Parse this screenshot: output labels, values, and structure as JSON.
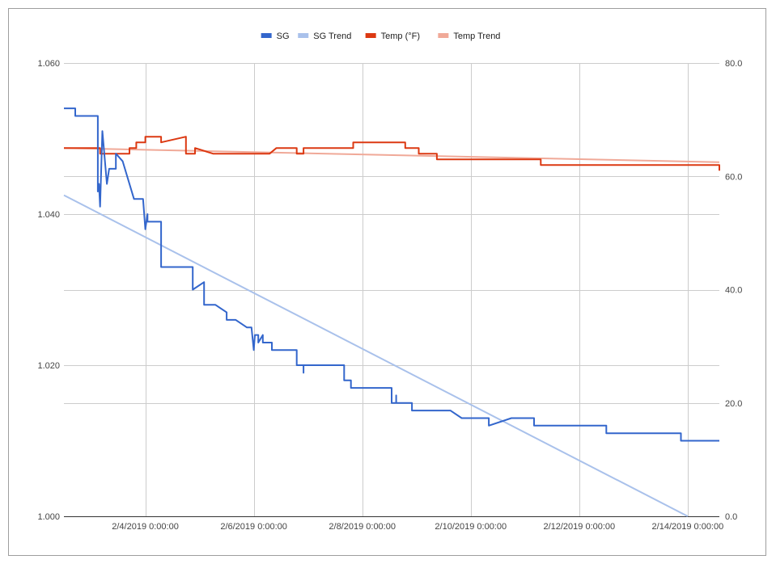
{
  "chart_data": {
    "type": "line",
    "title": "",
    "legend_position": "top",
    "grid": true,
    "x_axis": {
      "type": "date",
      "range": [
        "2019-02-02T12:00",
        "2019-02-14T14:00"
      ],
      "ticks": [
        {
          "value": "2019-02-04T00:00",
          "label": "2/4/2019 0:00:00"
        },
        {
          "value": "2019-02-06T00:00",
          "label": "2/6/2019 0:00:00"
        },
        {
          "value": "2019-02-08T00:00",
          "label": "2/8/2019 0:00:00"
        },
        {
          "value": "2019-02-10T00:00",
          "label": "2/10/2019 0:00:00"
        },
        {
          "value": "2019-02-12T00:00",
          "label": "2/12/2019 0:00:00"
        },
        {
          "value": "2019-02-14T00:00",
          "label": "2/14/2019 0:00:00"
        }
      ]
    },
    "y_left": {
      "range": [
        1.0,
        1.06
      ],
      "ticks": [
        {
          "value": 1.06,
          "label": "1.060"
        },
        {
          "value": 1.04,
          "label": "1.040"
        },
        {
          "value": 1.02,
          "label": "1.020"
        },
        {
          "value": 1.0,
          "label": "1.000"
        }
      ]
    },
    "y_right": {
      "range": [
        0,
        80
      ],
      "ticks": [
        {
          "value": 80,
          "label": "80.0"
        },
        {
          "value": 60,
          "label": "60.0"
        },
        {
          "value": 40,
          "label": "40.0"
        },
        {
          "value": 20,
          "label": "20.0"
        },
        {
          "value": 0,
          "label": "0.0"
        }
      ]
    },
    "series": [
      {
        "name": "SG",
        "color": "#3366cc",
        "axis": "left",
        "points": [
          [
            "2019-02-02T12:00",
            1.054
          ],
          [
            "2019-02-02T17:00",
            1.054
          ],
          [
            "2019-02-02T17:00",
            1.053
          ],
          [
            "2019-02-03T03:00",
            1.053
          ],
          [
            "2019-02-03T03:00",
            1.043
          ],
          [
            "2019-02-03T03:30",
            1.044
          ],
          [
            "2019-02-03T04:00",
            1.041
          ],
          [
            "2019-02-03T05:00",
            1.051
          ],
          [
            "2019-02-03T07:00",
            1.044
          ],
          [
            "2019-02-03T08:00",
            1.046
          ],
          [
            "2019-02-03T11:00",
            1.046
          ],
          [
            "2019-02-03T11:00",
            1.048
          ],
          [
            "2019-02-03T14:00",
            1.047
          ],
          [
            "2019-02-03T19:00",
            1.042
          ],
          [
            "2019-02-03T23:00",
            1.042
          ],
          [
            "2019-02-04T00:00",
            1.038
          ],
          [
            "2019-02-04T01:00",
            1.04
          ],
          [
            "2019-02-04T01:00",
            1.039
          ],
          [
            "2019-02-04T07:00",
            1.039
          ],
          [
            "2019-02-04T07:00",
            1.033
          ],
          [
            "2019-02-04T21:00",
            1.033
          ],
          [
            "2019-02-04T21:00",
            1.03
          ],
          [
            "2019-02-05T02:00",
            1.031
          ],
          [
            "2019-02-05T02:00",
            1.028
          ],
          [
            "2019-02-05T07:00",
            1.028
          ],
          [
            "2019-02-05T12:00",
            1.027
          ],
          [
            "2019-02-05T12:00",
            1.026
          ],
          [
            "2019-02-05T16:00",
            1.026
          ],
          [
            "2019-02-05T21:00",
            1.025
          ],
          [
            "2019-02-05T23:00",
            1.025
          ],
          [
            "2019-02-06T00:00",
            1.022
          ],
          [
            "2019-02-06T00:30",
            1.024
          ],
          [
            "2019-02-06T02:00",
            1.024
          ],
          [
            "2019-02-06T02:00",
            1.023
          ],
          [
            "2019-02-06T04:00",
            1.024
          ],
          [
            "2019-02-06T04:00",
            1.023
          ],
          [
            "2019-02-06T08:00",
            1.023
          ],
          [
            "2019-02-06T08:00",
            1.022
          ],
          [
            "2019-02-06T19:00",
            1.022
          ],
          [
            "2019-02-06T19:00",
            1.02
          ],
          [
            "2019-02-06T22:00",
            1.02
          ],
          [
            "2019-02-06T22:00",
            1.019
          ],
          [
            "2019-02-06T22:00",
            1.02
          ],
          [
            "2019-02-07T16:00",
            1.02
          ],
          [
            "2019-02-07T16:00",
            1.018
          ],
          [
            "2019-02-07T19:00",
            1.018
          ],
          [
            "2019-02-07T19:00",
            1.017
          ],
          [
            "2019-02-08T13:00",
            1.017
          ],
          [
            "2019-02-08T13:00",
            1.015
          ],
          [
            "2019-02-08T15:00",
            1.015
          ],
          [
            "2019-02-08T15:00",
            1.016
          ],
          [
            "2019-02-08T15:00",
            1.015
          ],
          [
            "2019-02-08T22:00",
            1.015
          ],
          [
            "2019-02-08T22:00",
            1.014
          ],
          [
            "2019-02-09T15:00",
            1.014
          ],
          [
            "2019-02-09T20:00",
            1.013
          ],
          [
            "2019-02-10T08:00",
            1.013
          ],
          [
            "2019-02-10T08:00",
            1.012
          ],
          [
            "2019-02-10T18:00",
            1.013
          ],
          [
            "2019-02-11T04:00",
            1.013
          ],
          [
            "2019-02-11T04:00",
            1.012
          ],
          [
            "2019-02-12T12:00",
            1.012
          ],
          [
            "2019-02-12T12:00",
            1.011
          ],
          [
            "2019-02-13T21:00",
            1.011
          ],
          [
            "2019-02-13T21:00",
            1.01
          ],
          [
            "2019-02-14T14:00",
            1.01
          ]
        ]
      },
      {
        "name": "SG Trend",
        "color": "#a9c1eb",
        "axis": "left",
        "points": [
          [
            "2019-02-02T12:00",
            1.0425
          ],
          [
            "2019-02-14T00:00",
            1.0
          ]
        ]
      },
      {
        "name": "Temp (°F)",
        "color": "#dc3912",
        "axis": "right",
        "points": [
          [
            "2019-02-02T12:00",
            65
          ],
          [
            "2019-02-03T04:00",
            65
          ],
          [
            "2019-02-03T04:00",
            64
          ],
          [
            "2019-02-03T17:00",
            64
          ],
          [
            "2019-02-03T17:00",
            65
          ],
          [
            "2019-02-03T20:00",
            65
          ],
          [
            "2019-02-03T20:00",
            66
          ],
          [
            "2019-02-04T00:00",
            66
          ],
          [
            "2019-02-04T00:00",
            67
          ],
          [
            "2019-02-04T07:00",
            67
          ],
          [
            "2019-02-04T07:00",
            66
          ],
          [
            "2019-02-04T18:00",
            67
          ],
          [
            "2019-02-04T18:00",
            64
          ],
          [
            "2019-02-04T22:00",
            64
          ],
          [
            "2019-02-04T22:00",
            65
          ],
          [
            "2019-02-05T06:00",
            64
          ],
          [
            "2019-02-06T07:00",
            64
          ],
          [
            "2019-02-06T10:00",
            65
          ],
          [
            "2019-02-06T19:00",
            65
          ],
          [
            "2019-02-06T19:00",
            64
          ],
          [
            "2019-02-06T22:00",
            64
          ],
          [
            "2019-02-06T22:00",
            65
          ],
          [
            "2019-02-07T20:00",
            65
          ],
          [
            "2019-02-07T20:00",
            66
          ],
          [
            "2019-02-08T19:00",
            66
          ],
          [
            "2019-02-08T19:00",
            65
          ],
          [
            "2019-02-09T01:00",
            65
          ],
          [
            "2019-02-09T01:00",
            64
          ],
          [
            "2019-02-09T09:00",
            64
          ],
          [
            "2019-02-09T09:00",
            63
          ],
          [
            "2019-02-11T07:00",
            63
          ],
          [
            "2019-02-11T07:00",
            62
          ],
          [
            "2019-02-14T14:00",
            62
          ],
          [
            "2019-02-14T14:00",
            61
          ]
        ]
      },
      {
        "name": "Temp Trend",
        "color": "#f0a998",
        "axis": "right",
        "points": [
          [
            "2019-02-02T12:00",
            65
          ],
          [
            "2019-02-14T14:00",
            62.5
          ]
        ]
      }
    ]
  }
}
